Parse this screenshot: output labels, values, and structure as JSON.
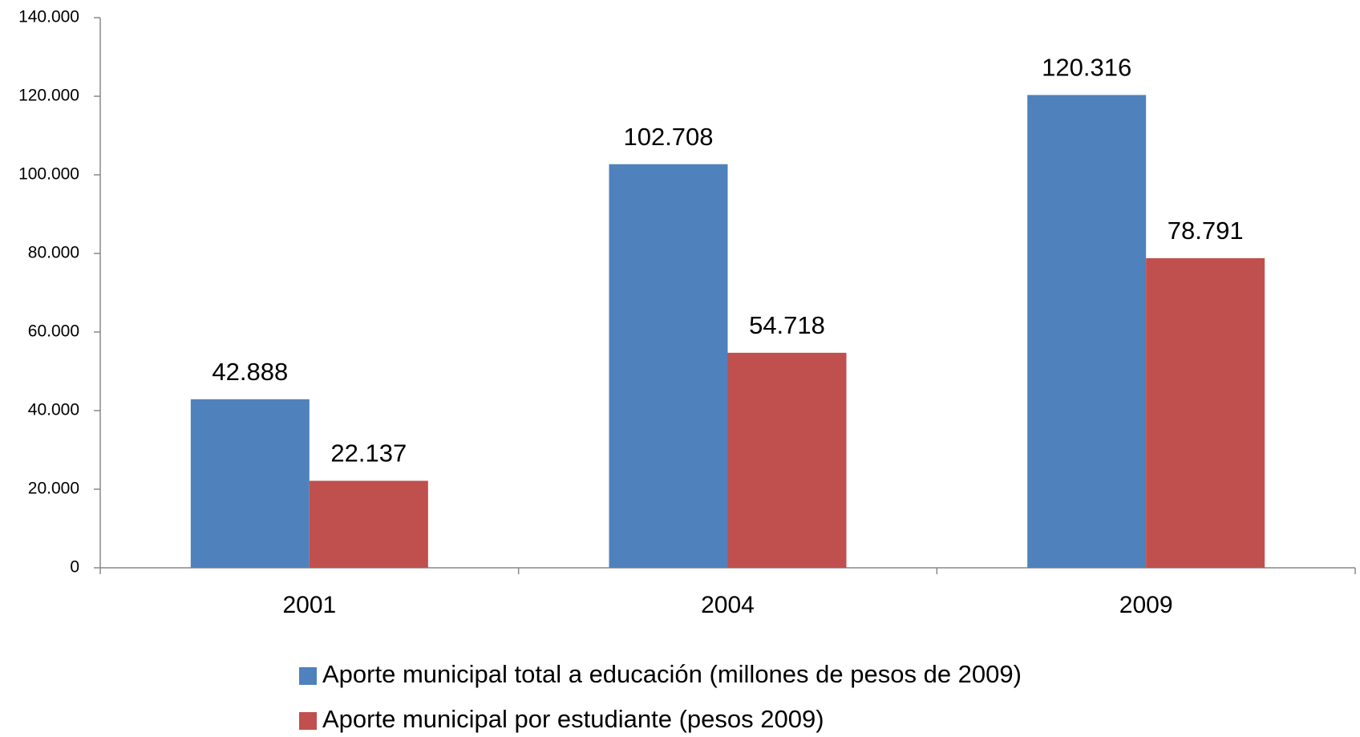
{
  "chart_data": {
    "type": "bar",
    "categories": [
      "2001",
      "2004",
      "2009"
    ],
    "series": [
      {
        "name": "Aporte municipal total a educación (millones de pesos de 2009)",
        "color": "#4f81bd",
        "values": [
          42888,
          102708,
          120316
        ],
        "value_labels": [
          "42.888",
          "102.708",
          "120.316"
        ]
      },
      {
        "name": "Aporte municipal por estudiante (pesos 2009)",
        "color": "#c0504d",
        "values": [
          22137,
          54718,
          78791
        ],
        "value_labels": [
          "22.137",
          "54.718",
          "78.791"
        ]
      }
    ],
    "ylim": [
      0,
      140000
    ],
    "yticks": [
      0,
      {
        "value": 20000,
        "label": "20.000"
      },
      {
        "value": 40000,
        "label": "40.000"
      },
      {
        "value": 60000,
        "label": "60.000"
      },
      {
        "value": 80000,
        "label": "80.000"
      },
      {
        "value": 100000,
        "label": "100.000"
      },
      {
        "value": 120000,
        "label": "120.000"
      },
      {
        "value": 140000,
        "label": "140.000"
      }
    ],
    "grid": false,
    "legend": "bottom"
  }
}
